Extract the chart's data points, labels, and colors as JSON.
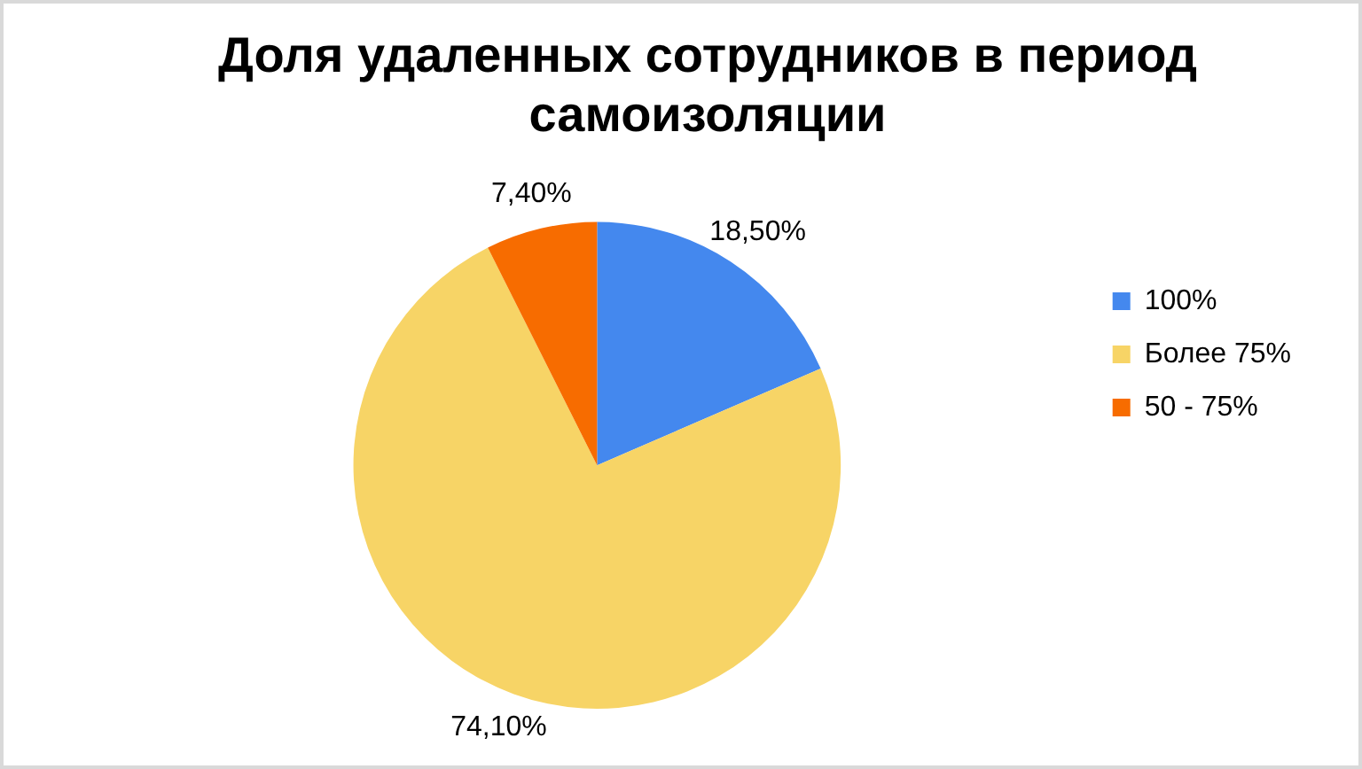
{
  "chart_data": {
    "type": "pie",
    "title": "Доля удаленных сотрудников в период самоизоляции",
    "categories": [
      "100%",
      "Более 75%",
      "50 - 75%"
    ],
    "values": [
      18.5,
      74.1,
      7.4
    ],
    "colors": [
      "#4488ee",
      "#f7d466",
      "#f76c00"
    ],
    "value_labels": [
      "18,50%",
      "74,10%",
      "7,40%"
    ],
    "legend": "right"
  }
}
